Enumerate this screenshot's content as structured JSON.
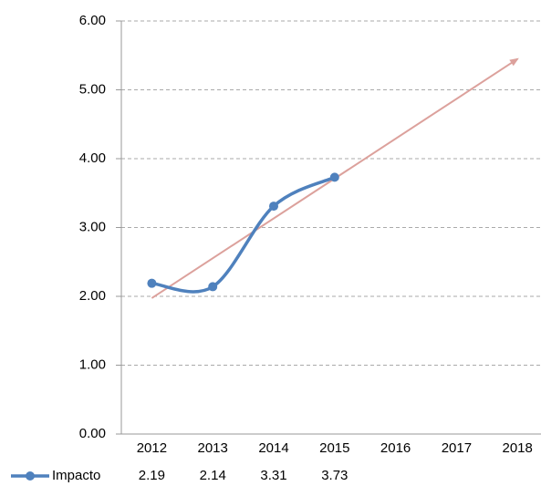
{
  "chart_data": {
    "type": "line",
    "categories": [
      "2012",
      "2013",
      "2014",
      "2015",
      "2016",
      "2017",
      "2018"
    ],
    "series": [
      {
        "name": "Impacto",
        "color": "#4f81bd",
        "values": [
          2.19,
          2.14,
          3.31,
          3.73,
          null,
          null,
          null
        ]
      }
    ],
    "ylim": [
      0,
      6
    ],
    "yticks": [
      {
        "value": 0,
        "label": "0.00"
      },
      {
        "value": 1,
        "label": "1.00"
      },
      {
        "value": 2,
        "label": "2.00"
      },
      {
        "value": 3,
        "label": "3.00"
      },
      {
        "value": 4,
        "label": "4.00"
      },
      {
        "value": 5,
        "label": "5.00"
      },
      {
        "value": 6,
        "label": "6.00"
      }
    ],
    "grid": true,
    "smooth": true,
    "data_table": true,
    "trendline": {
      "type": "linear",
      "color": "#dca19c"
    }
  }
}
